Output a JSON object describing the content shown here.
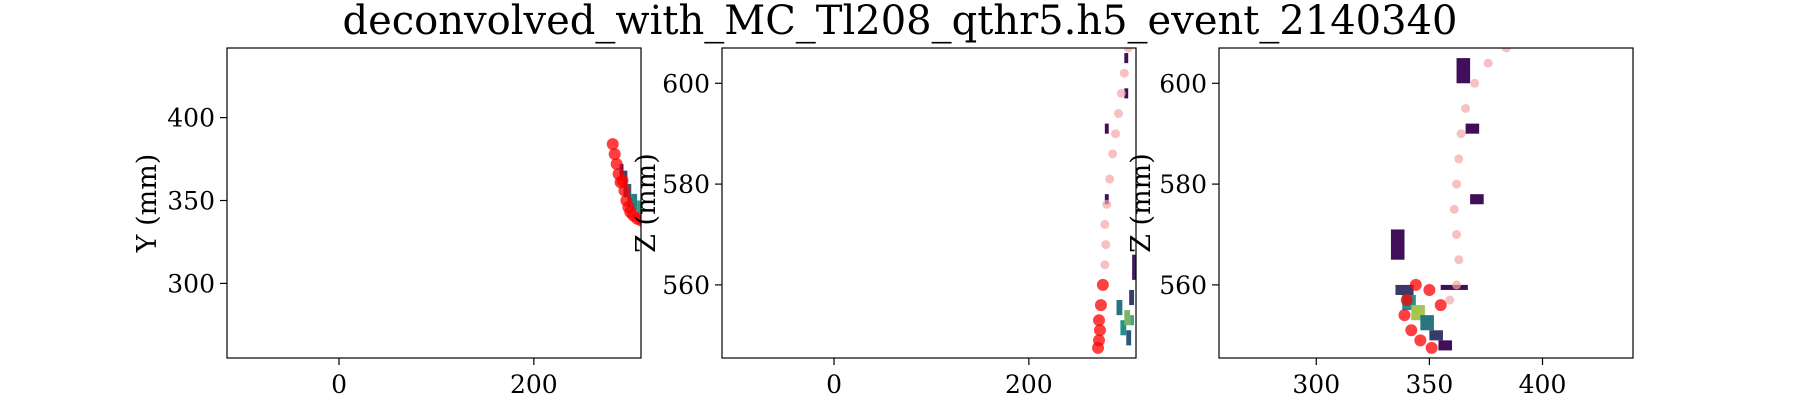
{
  "title": "deconvolved_with_MC_Tl208_qthr5.h5_event_2140340",
  "colors": {
    "hit_low": "#440154",
    "hit_mid": "#21918c",
    "hit_high": "#fde725",
    "mc_track": "#ff0000",
    "mc_track_faint": "#f4a7a7"
  },
  "chart_data": [
    {
      "type": "heatmap",
      "xlabel": "",
      "ylabel": "Y (mm)",
      "xlim": [
        -115,
        310
      ],
      "ylim": [
        255,
        442
      ],
      "xticks": [
        0,
        200
      ],
      "yticks": [
        300,
        350,
        400
      ],
      "hits": [
        {
          "x": 288,
          "y": 362,
          "w": 4,
          "h": 10,
          "v": 0.1
        },
        {
          "x": 292,
          "y": 352,
          "w": 4,
          "h": 16,
          "v": 0.25
        },
        {
          "x": 296,
          "y": 346,
          "w": 4,
          "h": 14,
          "v": 0.35
        },
        {
          "x": 300,
          "y": 344,
          "w": 6,
          "h": 10,
          "v": 0.45
        },
        {
          "x": 306,
          "y": 342,
          "w": 6,
          "h": 8,
          "v": 0.55
        },
        {
          "x": 312,
          "y": 340,
          "w": 6,
          "h": 8,
          "v": 0.7
        },
        {
          "x": 318,
          "y": 338,
          "w": 6,
          "h": 8,
          "v": 0.9
        },
        {
          "x": 324,
          "y": 339,
          "w": 6,
          "h": 6,
          "v": 0.6
        },
        {
          "x": 330,
          "y": 341,
          "w": 6,
          "h": 6,
          "v": 0.3
        }
      ],
      "mc_track": {
        "x": [
          281,
          283,
          285,
          287,
          289,
          291,
          293,
          295,
          297,
          299,
          302,
          306,
          310,
          314,
          318,
          322,
          326,
          330,
          333
        ],
        "y": [
          384,
          378,
          372,
          366,
          361,
          362,
          356,
          350,
          346,
          343,
          341,
          339,
          338,
          338,
          337,
          337,
          336,
          337,
          338
        ]
      }
    },
    {
      "type": "heatmap",
      "xlabel": "",
      "ylabel": "Z (mm)",
      "xlim": [
        -115,
        310
      ],
      "ylim": [
        545.5,
        607
      ],
      "xticks": [
        0,
        200
      ],
      "yticks": [
        560,
        580,
        600
      ],
      "hits": [
        {
          "x": 278,
          "y": 590,
          "w": 4,
          "h": 2,
          "v": 0.05
        },
        {
          "x": 278,
          "y": 576,
          "w": 4,
          "h": 2,
          "v": 0.05
        },
        {
          "x": 298,
          "y": 604,
          "w": 4,
          "h": 2,
          "v": 0.05
        },
        {
          "x": 298,
          "y": 597,
          "w": 4,
          "h": 2,
          "v": 0.05
        },
        {
          "x": 290,
          "y": 554,
          "w": 6,
          "h": 3,
          "v": 0.4
        },
        {
          "x": 294,
          "y": 550,
          "w": 6,
          "h": 3,
          "v": 0.5
        },
        {
          "x": 298,
          "y": 552,
          "w": 6,
          "h": 3,
          "v": 0.7
        },
        {
          "x": 300,
          "y": 548,
          "w": 5,
          "h": 3,
          "v": 0.3
        },
        {
          "x": 303,
          "y": 556,
          "w": 5,
          "h": 3,
          "v": 0.2
        },
        {
          "x": 306,
          "y": 561,
          "w": 4,
          "h": 5,
          "v": 0.1
        },
        {
          "x": 304,
          "y": 552,
          "w": 4,
          "h": 2,
          "v": 0.6
        }
      ],
      "mc_track": {
        "x": [
          271,
          272,
          273,
          272,
          274,
          276,
          278,
          279,
          278,
          280,
          283,
          286,
          289,
          292,
          295,
          298,
          302
        ],
        "y": [
          547.5,
          549,
          551,
          553,
          556,
          560,
          564,
          568,
          572,
          576,
          581,
          586,
          590,
          594,
          598,
          602,
          607
        ]
      }
    },
    {
      "type": "heatmap",
      "xlabel": "",
      "ylabel": "Z (mm)",
      "xlim": [
        257,
        440
      ],
      "ylim": [
        545.5,
        607
      ],
      "xticks": [
        300,
        350,
        400
      ],
      "yticks": [
        560,
        580,
        600
      ],
      "hits": [
        {
          "x": 333,
          "y": 565,
          "w": 6,
          "h": 6,
          "v": 0.05
        },
        {
          "x": 335,
          "y": 558,
          "w": 8,
          "h": 2,
          "v": 0.2
        },
        {
          "x": 338,
          "y": 555,
          "w": 6,
          "h": 3,
          "v": 0.5
        },
        {
          "x": 342,
          "y": 553,
          "w": 6,
          "h": 3,
          "v": 0.8
        },
        {
          "x": 346,
          "y": 551,
          "w": 6,
          "h": 3,
          "v": 0.4
        },
        {
          "x": 350,
          "y": 549,
          "w": 6,
          "h": 2,
          "v": 0.2
        },
        {
          "x": 354,
          "y": 547,
          "w": 6,
          "h": 2,
          "v": 0.05
        },
        {
          "x": 362,
          "y": 600,
          "w": 6,
          "h": 5,
          "v": 0.05
        },
        {
          "x": 366,
          "y": 590,
          "w": 6,
          "h": 2,
          "v": 0.05
        },
        {
          "x": 368,
          "y": 576,
          "w": 6,
          "h": 2,
          "v": 0.05
        },
        {
          "x": 355,
          "y": 559,
          "w": 12,
          "h": 1,
          "v": 0.05
        }
      ],
      "mc_track": {
        "x": [
          351,
          346,
          342,
          339,
          340,
          344,
          350,
          355,
          359,
          362,
          363,
          362,
          361,
          362,
          363,
          364,
          366,
          370,
          376,
          384
        ],
        "y": [
          547.5,
          549,
          551,
          554,
          557,
          560,
          559,
          556,
          557,
          560,
          565,
          570,
          575,
          580,
          585,
          590,
          595,
          600,
          604,
          607
        ]
      }
    }
  ]
}
